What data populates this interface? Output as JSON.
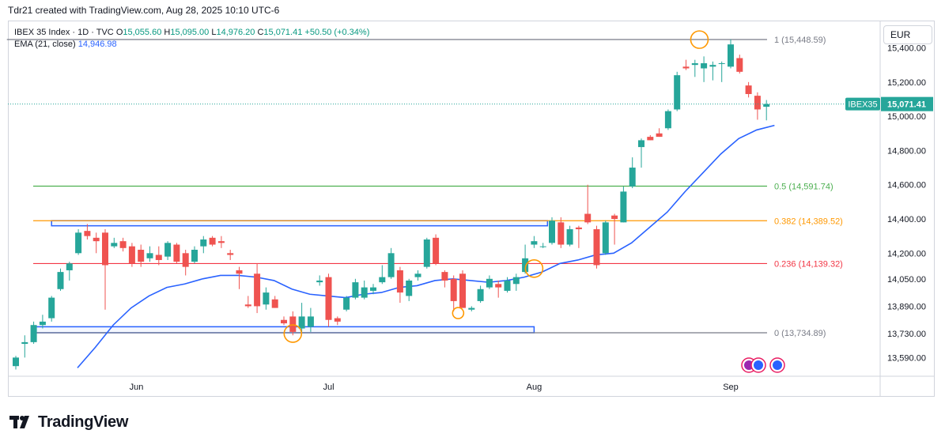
{
  "header": {
    "credit": "Tdr21 created with TradingView.com, Aug 28, 2025 10:10 UTC-6"
  },
  "legend": {
    "symbol": "IBEX 35 Index · 1D · TVC",
    "o_label": "O",
    "o_value": "15,055.60",
    "h_label": "H",
    "h_value": "15,095.00",
    "l_label": "L",
    "l_value": "14,976.20",
    "c_label": "C",
    "c_value": "15,071.41",
    "change": "+50.50 (+0.34%)",
    "ema_label": "EMA (21, close)",
    "ema_value": "14,946.98"
  },
  "currency": "EUR",
  "brand": {
    "name": "TradingView"
  },
  "colors": {
    "up": "#26a69a",
    "down": "#ef5350",
    "ema": "#2962ff",
    "fib0": "#787b86",
    "fib236": "#f23645",
    "fib382": "#ff9800",
    "fib5": "#4caf50",
    "fib1": "#787b86",
    "price_tag": "#26a69a",
    "box": "#2962ff",
    "marker": "#ff9800"
  },
  "chart_data": {
    "type": "candlestick",
    "symbol": "IBEX35",
    "currency": "EUR",
    "last_price": {
      "label": "IBEX35",
      "value": "15,071.41",
      "num": 15071.41
    },
    "y_ticks": [
      {
        "label": "13,590.00",
        "v": 13590
      },
      {
        "label": "13,730.00",
        "v": 13730
      },
      {
        "label": "13,890.00",
        "v": 13890
      },
      {
        "label": "14,050.00",
        "v": 14050
      },
      {
        "label": "14,200.00",
        "v": 14200
      },
      {
        "label": "14,400.00",
        "v": 14400
      },
      {
        "label": "14,600.00",
        "v": 14600
      },
      {
        "label": "14,800.00",
        "v": 14800
      },
      {
        "label": "15,000.00",
        "v": 15000
      },
      {
        "label": "15,200.00",
        "v": 15200
      },
      {
        "label": "15,400.00",
        "v": 15400
      }
    ],
    "x_ticks": [
      {
        "label": "Jun",
        "index": 13.5
      },
      {
        "label": "Jul",
        "index": 35
      },
      {
        "label": "Aug",
        "index": 58
      },
      {
        "label": "Sep",
        "index": 80
      }
    ],
    "fib_levels": [
      {
        "ratio": "1",
        "label": "1 (15,448.59)",
        "v": 15448.59,
        "color": "#787b86"
      },
      {
        "ratio": "0.5",
        "label": "0.5 (14,591.74)",
        "v": 14591.74,
        "color": "#4caf50"
      },
      {
        "ratio": "0.382",
        "label": "0.382 (14,389.52)",
        "v": 14389.52,
        "color": "#ff9800"
      },
      {
        "ratio": "0.236",
        "label": "0.236 (14,139.32)",
        "v": 14139.32,
        "color": "#f23645"
      },
      {
        "ratio": "0",
        "label": "0 (13,734.89)",
        "v": 13734.89,
        "color": "#787b86"
      }
    ],
    "zones": [
      {
        "from_index": 4,
        "to_index": 59.5,
        "top": 14390,
        "bottom": 14360
      },
      {
        "from_index": 2,
        "to_index": 58,
        "top": 13770,
        "bottom": 13735
      }
    ],
    "markers": [
      {
        "index": 31,
        "v": 13730
      },
      {
        "index": 49.5,
        "v": 13850
      },
      {
        "index": 58,
        "v": 14110
      },
      {
        "index": 76.5,
        "v": 15448
      }
    ],
    "candles": [
      {
        "i": 0,
        "o": 13540,
        "h": 13600,
        "l": 13520,
        "c": 13590
      },
      {
        "i": 1,
        "o": 13670,
        "h": 13720,
        "l": 13590,
        "c": 13680
      },
      {
        "i": 2,
        "o": 13680,
        "h": 13800,
        "l": 13670,
        "c": 13780
      },
      {
        "i": 3,
        "o": 13780,
        "h": 13840,
        "l": 13760,
        "c": 13800
      },
      {
        "i": 4,
        "o": 13820,
        "h": 13950,
        "l": 13800,
        "c": 13940
      },
      {
        "i": 5,
        "o": 13990,
        "h": 14110,
        "l": 13980,
        "c": 14090
      },
      {
        "i": 6,
        "o": 14100,
        "h": 14150,
        "l": 14040,
        "c": 14140
      },
      {
        "i": 7,
        "o": 14200,
        "h": 14340,
        "l": 14190,
        "c": 14320
      },
      {
        "i": 8,
        "o": 14330,
        "h": 14370,
        "l": 14280,
        "c": 14300
      },
      {
        "i": 9,
        "o": 14290,
        "h": 14320,
        "l": 14200,
        "c": 14270
      },
      {
        "i": 10,
        "o": 14320,
        "h": 14340,
        "l": 13870,
        "c": 14130
      },
      {
        "i": 11,
        "o": 14240,
        "h": 14290,
        "l": 14230,
        "c": 14260
      },
      {
        "i": 12,
        "o": 14270,
        "h": 14290,
        "l": 14210,
        "c": 14230
      },
      {
        "i": 13,
        "o": 14240,
        "h": 14260,
        "l": 14120,
        "c": 14140
      },
      {
        "i": 14,
        "o": 14220,
        "h": 14250,
        "l": 14120,
        "c": 14150
      },
      {
        "i": 15,
        "o": 14170,
        "h": 14240,
        "l": 14150,
        "c": 14200
      },
      {
        "i": 16,
        "o": 14190,
        "h": 14240,
        "l": 14130,
        "c": 14160
      },
      {
        "i": 17,
        "o": 14180,
        "h": 14270,
        "l": 14160,
        "c": 14260
      },
      {
        "i": 18,
        "o": 14250,
        "h": 14260,
        "l": 14140,
        "c": 14150
      },
      {
        "i": 19,
        "o": 14200,
        "h": 14220,
        "l": 14070,
        "c": 14120
      },
      {
        "i": 20,
        "o": 14150,
        "h": 14240,
        "l": 14140,
        "c": 14220
      },
      {
        "i": 21,
        "o": 14240,
        "h": 14300,
        "l": 14200,
        "c": 14280
      },
      {
        "i": 22,
        "o": 14290,
        "h": 14300,
        "l": 14240,
        "c": 14250
      },
      {
        "i": 23,
        "o": 14270,
        "h": 14300,
        "l": 14230,
        "c": 14260
      },
      {
        "i": 24,
        "o": 14200,
        "h": 14220,
        "l": 14160,
        "c": 14190
      },
      {
        "i": 25,
        "o": 14100,
        "h": 14120,
        "l": 13990,
        "c": 14080
      },
      {
        "i": 26,
        "o": 13900,
        "h": 13950,
        "l": 13880,
        "c": 13890
      },
      {
        "i": 27,
        "o": 14080,
        "h": 14140,
        "l": 13850,
        "c": 13890
      },
      {
        "i": 28,
        "o": 13900,
        "h": 14000,
        "l": 13870,
        "c": 13970
      },
      {
        "i": 29,
        "o": 13930,
        "h": 13950,
        "l": 13880,
        "c": 13880
      },
      {
        "i": 30,
        "o": 13810,
        "h": 13830,
        "l": 13780,
        "c": 13790
      },
      {
        "i": 31,
        "o": 13830,
        "h": 13860,
        "l": 13720,
        "c": 13740
      },
      {
        "i": 32,
        "o": 13760,
        "h": 13910,
        "l": 13740,
        "c": 13830
      },
      {
        "i": 33,
        "o": 13770,
        "h": 13880,
        "l": 13740,
        "c": 13830
      },
      {
        "i": 34,
        "o": 14030,
        "h": 14070,
        "l": 14010,
        "c": 14040
      },
      {
        "i": 35,
        "o": 14060,
        "h": 14080,
        "l": 13770,
        "c": 13810
      },
      {
        "i": 36,
        "o": 13820,
        "h": 13830,
        "l": 13780,
        "c": 13800
      },
      {
        "i": 37,
        "o": 13870,
        "h": 13950,
        "l": 13860,
        "c": 13940
      },
      {
        "i": 38,
        "o": 13940,
        "h": 14050,
        "l": 13930,
        "c": 14030
      },
      {
        "i": 39,
        "o": 13940,
        "h": 14040,
        "l": 13930,
        "c": 14000
      },
      {
        "i": 40,
        "o": 13980,
        "h": 14020,
        "l": 13960,
        "c": 14000
      },
      {
        "i": 41,
        "o": 14030,
        "h": 14130,
        "l": 14020,
        "c": 14060
      },
      {
        "i": 42,
        "o": 14060,
        "h": 14230,
        "l": 14050,
        "c": 14200
      },
      {
        "i": 43,
        "o": 14100,
        "h": 14120,
        "l": 13910,
        "c": 13970
      },
      {
        "i": 44,
        "o": 13950,
        "h": 14050,
        "l": 13920,
        "c": 14040
      },
      {
        "i": 45,
        "o": 14060,
        "h": 14100,
        "l": 14040,
        "c": 14080
      },
      {
        "i": 46,
        "o": 14120,
        "h": 14290,
        "l": 14110,
        "c": 14280
      },
      {
        "i": 47,
        "o": 14290,
        "h": 14310,
        "l": 14130,
        "c": 14140
      },
      {
        "i": 48,
        "o": 14090,
        "h": 14100,
        "l": 14000,
        "c": 14040
      },
      {
        "i": 49,
        "o": 14050,
        "h": 14070,
        "l": 13860,
        "c": 13920
      },
      {
        "i": 50,
        "o": 14080,
        "h": 14100,
        "l": 13880,
        "c": 13880
      },
      {
        "i": 51,
        "o": 13870,
        "h": 13890,
        "l": 13860,
        "c": 13880
      },
      {
        "i": 52,
        "o": 13920,
        "h": 14010,
        "l": 13910,
        "c": 13990
      },
      {
        "i": 53,
        "o": 14000,
        "h": 14070,
        "l": 13990,
        "c": 14050
      },
      {
        "i": 54,
        "o": 14020,
        "h": 14040,
        "l": 13940,
        "c": 14000
      },
      {
        "i": 55,
        "o": 13980,
        "h": 14060,
        "l": 13970,
        "c": 14040
      },
      {
        "i": 56,
        "o": 14020,
        "h": 14080,
        "l": 13980,
        "c": 14060
      },
      {
        "i": 57,
        "o": 14090,
        "h": 14250,
        "l": 14080,
        "c": 14170
      },
      {
        "i": 58,
        "o": 14250,
        "h": 14300,
        "l": 14230,
        "c": 14270
      },
      {
        "i": 59,
        "o": 14240,
        "h": 14260,
        "l": 14230,
        "c": 14240
      },
      {
        "i": 60,
        "o": 14260,
        "h": 14410,
        "l": 14250,
        "c": 14390
      },
      {
        "i": 61,
        "o": 14380,
        "h": 14410,
        "l": 14230,
        "c": 14250
      },
      {
        "i": 62,
        "o": 14250,
        "h": 14360,
        "l": 14240,
        "c": 14340
      },
      {
        "i": 63,
        "o": 14350,
        "h": 14360,
        "l": 14230,
        "c": 14340
      },
      {
        "i": 64,
        "o": 14430,
        "h": 14600,
        "l": 14370,
        "c": 14380
      },
      {
        "i": 65,
        "o": 14340,
        "h": 14360,
        "l": 14110,
        "c": 14130
      },
      {
        "i": 66,
        "o": 14200,
        "h": 14390,
        "l": 14190,
        "c": 14380
      },
      {
        "i": 67,
        "o": 14420,
        "h": 14430,
        "l": 14250,
        "c": 14400
      },
      {
        "i": 68,
        "o": 14380,
        "h": 14590,
        "l": 14380,
        "c": 14560
      },
      {
        "i": 69,
        "o": 14590,
        "h": 14760,
        "l": 14580,
        "c": 14700
      },
      {
        "i": 70,
        "o": 14820,
        "h": 14870,
        "l": 14700,
        "c": 14860
      },
      {
        "i": 71,
        "o": 14880,
        "h": 14890,
        "l": 14860,
        "c": 14860
      },
      {
        "i": 72,
        "o": 14900,
        "h": 14930,
        "l": 14880,
        "c": 14880
      },
      {
        "i": 73,
        "o": 14930,
        "h": 15040,
        "l": 14920,
        "c": 15030
      },
      {
        "i": 74,
        "o": 15040,
        "h": 15260,
        "l": 15030,
        "c": 15240
      },
      {
        "i": 75,
        "o": 15290,
        "h": 15330,
        "l": 15270,
        "c": 15280
      },
      {
        "i": 76,
        "o": 15300,
        "h": 15330,
        "l": 15230,
        "c": 15310
      },
      {
        "i": 77,
        "o": 15280,
        "h": 15350,
        "l": 15200,
        "c": 15310
      },
      {
        "i": 78,
        "o": 15290,
        "h": 15320,
        "l": 15210,
        "c": 15300
      },
      {
        "i": 79,
        "o": 15310,
        "h": 15320,
        "l": 15200,
        "c": 15310
      },
      {
        "i": 80,
        "o": 15290,
        "h": 15450,
        "l": 15280,
        "c": 15420
      },
      {
        "i": 81,
        "o": 15340,
        "h": 15360,
        "l": 15250,
        "c": 15260
      },
      {
        "i": 82,
        "o": 15180,
        "h": 15200,
        "l": 15110,
        "c": 15130
      },
      {
        "i": 83,
        "o": 15120,
        "h": 15140,
        "l": 14980,
        "c": 15040
      },
      {
        "i": 84,
        "o": 15055.6,
        "h": 15095,
        "l": 14976.2,
        "c": 15071.41
      }
    ],
    "ema": [
      {
        "i": 6,
        "v": 13530
      },
      {
        "i": 8,
        "v": 13650
      },
      {
        "i": 10,
        "v": 13780
      },
      {
        "i": 12,
        "v": 13880
      },
      {
        "i": 14,
        "v": 13950
      },
      {
        "i": 16,
        "v": 14000
      },
      {
        "i": 18,
        "v": 14020
      },
      {
        "i": 20,
        "v": 14050
      },
      {
        "i": 22,
        "v": 14070
      },
      {
        "i": 24,
        "v": 14070
      },
      {
        "i": 26,
        "v": 14060
      },
      {
        "i": 28,
        "v": 14040
      },
      {
        "i": 30,
        "v": 13990
      },
      {
        "i": 32,
        "v": 13960
      },
      {
        "i": 34,
        "v": 13950
      },
      {
        "i": 36,
        "v": 13940
      },
      {
        "i": 38,
        "v": 13960
      },
      {
        "i": 40,
        "v": 13970
      },
      {
        "i": 42,
        "v": 14000
      },
      {
        "i": 44,
        "v": 14010
      },
      {
        "i": 46,
        "v": 14040
      },
      {
        "i": 48,
        "v": 14050
      },
      {
        "i": 50,
        "v": 14040
      },
      {
        "i": 52,
        "v": 14030
      },
      {
        "i": 54,
        "v": 14040
      },
      {
        "i": 56,
        "v": 14060
      },
      {
        "i": 58,
        "v": 14090
      },
      {
        "i": 60,
        "v": 14140
      },
      {
        "i": 62,
        "v": 14160
      },
      {
        "i": 64,
        "v": 14190
      },
      {
        "i": 66,
        "v": 14200
      },
      {
        "i": 68,
        "v": 14260
      },
      {
        "i": 70,
        "v": 14350
      },
      {
        "i": 72,
        "v": 14440
      },
      {
        "i": 74,
        "v": 14560
      },
      {
        "i": 76,
        "v": 14670
      },
      {
        "i": 78,
        "v": 14780
      },
      {
        "i": 80,
        "v": 14870
      },
      {
        "i": 82,
        "v": 14920
      },
      {
        "i": 84,
        "v": 14946.98
      }
    ]
  }
}
